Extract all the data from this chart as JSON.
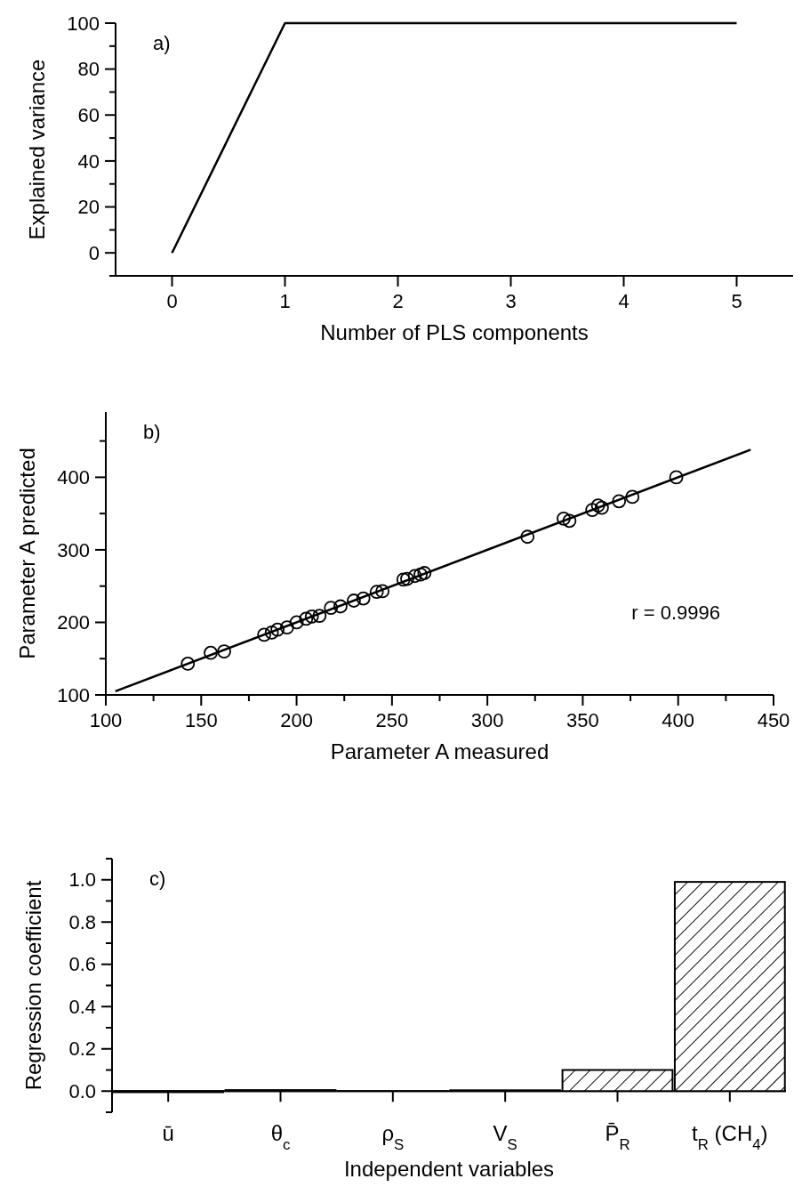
{
  "chart_data": [
    {
      "type": "line",
      "xlabel": "Number of PLS components",
      "ylabel": "Explained variance",
      "x": [
        0,
        1,
        2,
        3,
        4,
        5
      ],
      "series": [
        {
          "color": "#000000",
          "values": [
            0,
            100,
            100,
            100,
            100,
            100
          ]
        }
      ],
      "xlim": [
        -0.5,
        5.5
      ],
      "xticks": [
        0,
        1,
        2,
        3,
        4,
        5
      ],
      "ylim": [
        -10,
        100
      ],
      "yticks": [
        {
          "value": -10,
          "label": null
        },
        0,
        {
          "value": 10,
          "label": null
        },
        20,
        {
          "value": 30,
          "label": null
        },
        40,
        {
          "value": 50,
          "label": null
        },
        60,
        {
          "value": 70,
          "label": null
        },
        80,
        {
          "value": 90,
          "label": null
        },
        100
      ],
      "annotations": [
        "a)"
      ]
    },
    {
      "type": "scatter",
      "xlabel": "Parameter A measured",
      "ylabel": "Parameter A predicted",
      "series": [
        {
          "type": "scatter",
          "marker": "circle",
          "color": "#000000",
          "x": [
            143,
            155,
            162,
            183,
            187,
            190,
            195,
            200,
            205,
            208,
            212,
            218,
            223,
            230,
            235,
            242,
            245,
            256,
            258,
            262,
            265,
            267,
            321,
            340,
            343,
            355,
            358,
            360,
            369,
            376,
            399
          ],
          "values": [
            143,
            158,
            160,
            183,
            186,
            190,
            193,
            200,
            205,
            208,
            209,
            220,
            222,
            230,
            233,
            242,
            243,
            259,
            260,
            264,
            266,
            268,
            318,
            343,
            340,
            355,
            361,
            358,
            367,
            373,
            400
          ]
        },
        {
          "type": "line",
          "marker": "none",
          "color": "#000000",
          "x": [
            105,
            438
          ],
          "values": [
            105,
            438
          ]
        }
      ],
      "xlim": [
        100,
        450
      ],
      "xticks": [
        100,
        {
          "value": 125,
          "label": null
        },
        150,
        {
          "value": 175,
          "label": null
        },
        200,
        {
          "value": 225,
          "label": null
        },
        250,
        {
          "value": 275,
          "label": null
        },
        300,
        {
          "value": 325,
          "label": null
        },
        350,
        {
          "value": 375,
          "label": null
        },
        400,
        {
          "value": 425,
          "label": null
        },
        450
      ],
      "ylim": [
        100,
        490
      ],
      "yticks": [
        100,
        {
          "value": 150,
          "label": null
        },
        200,
        {
          "value": 250,
          "label": null
        },
        300,
        {
          "value": 350,
          "label": null
        },
        400,
        {
          "value": 450,
          "label": null
        }
      ],
      "annotations": [
        "b)",
        "r = 0.9996"
      ]
    },
    {
      "type": "bar",
      "xlabel": "Independent variables",
      "ylabel": "Regression coefficient",
      "categories": [
        "ū",
        "θ$_{c}$",
        "ρ$_{S}$",
        "V$_{S}$",
        "P̄$_{R}$",
        "t$_{R}$ (CH$_{4}$)"
      ],
      "series": [
        {
          "color": "#000000",
          "values": [
            -0.005,
            0.005,
            0,
            0.004,
            0.1,
            0.99
          ]
        }
      ],
      "ylim": [
        -0.1,
        1.1
      ],
      "yticks": [
        {
          "value": -0.1,
          "label": null
        },
        {
          "value": 0,
          "label": "0.0"
        },
        {
          "value": 0.1,
          "label": null
        },
        0.2,
        {
          "value": 0.3,
          "label": null
        },
        0.4,
        {
          "value": 0.5,
          "label": null
        },
        0.6,
        {
          "value": 0.7,
          "label": null
        },
        0.8,
        {
          "value": 0.9,
          "label": null
        },
        {
          "value": 1,
          "label": "1.0"
        },
        {
          "value": 1.1,
          "label": null
        }
      ],
      "annotations": [
        "c)"
      ]
    }
  ]
}
